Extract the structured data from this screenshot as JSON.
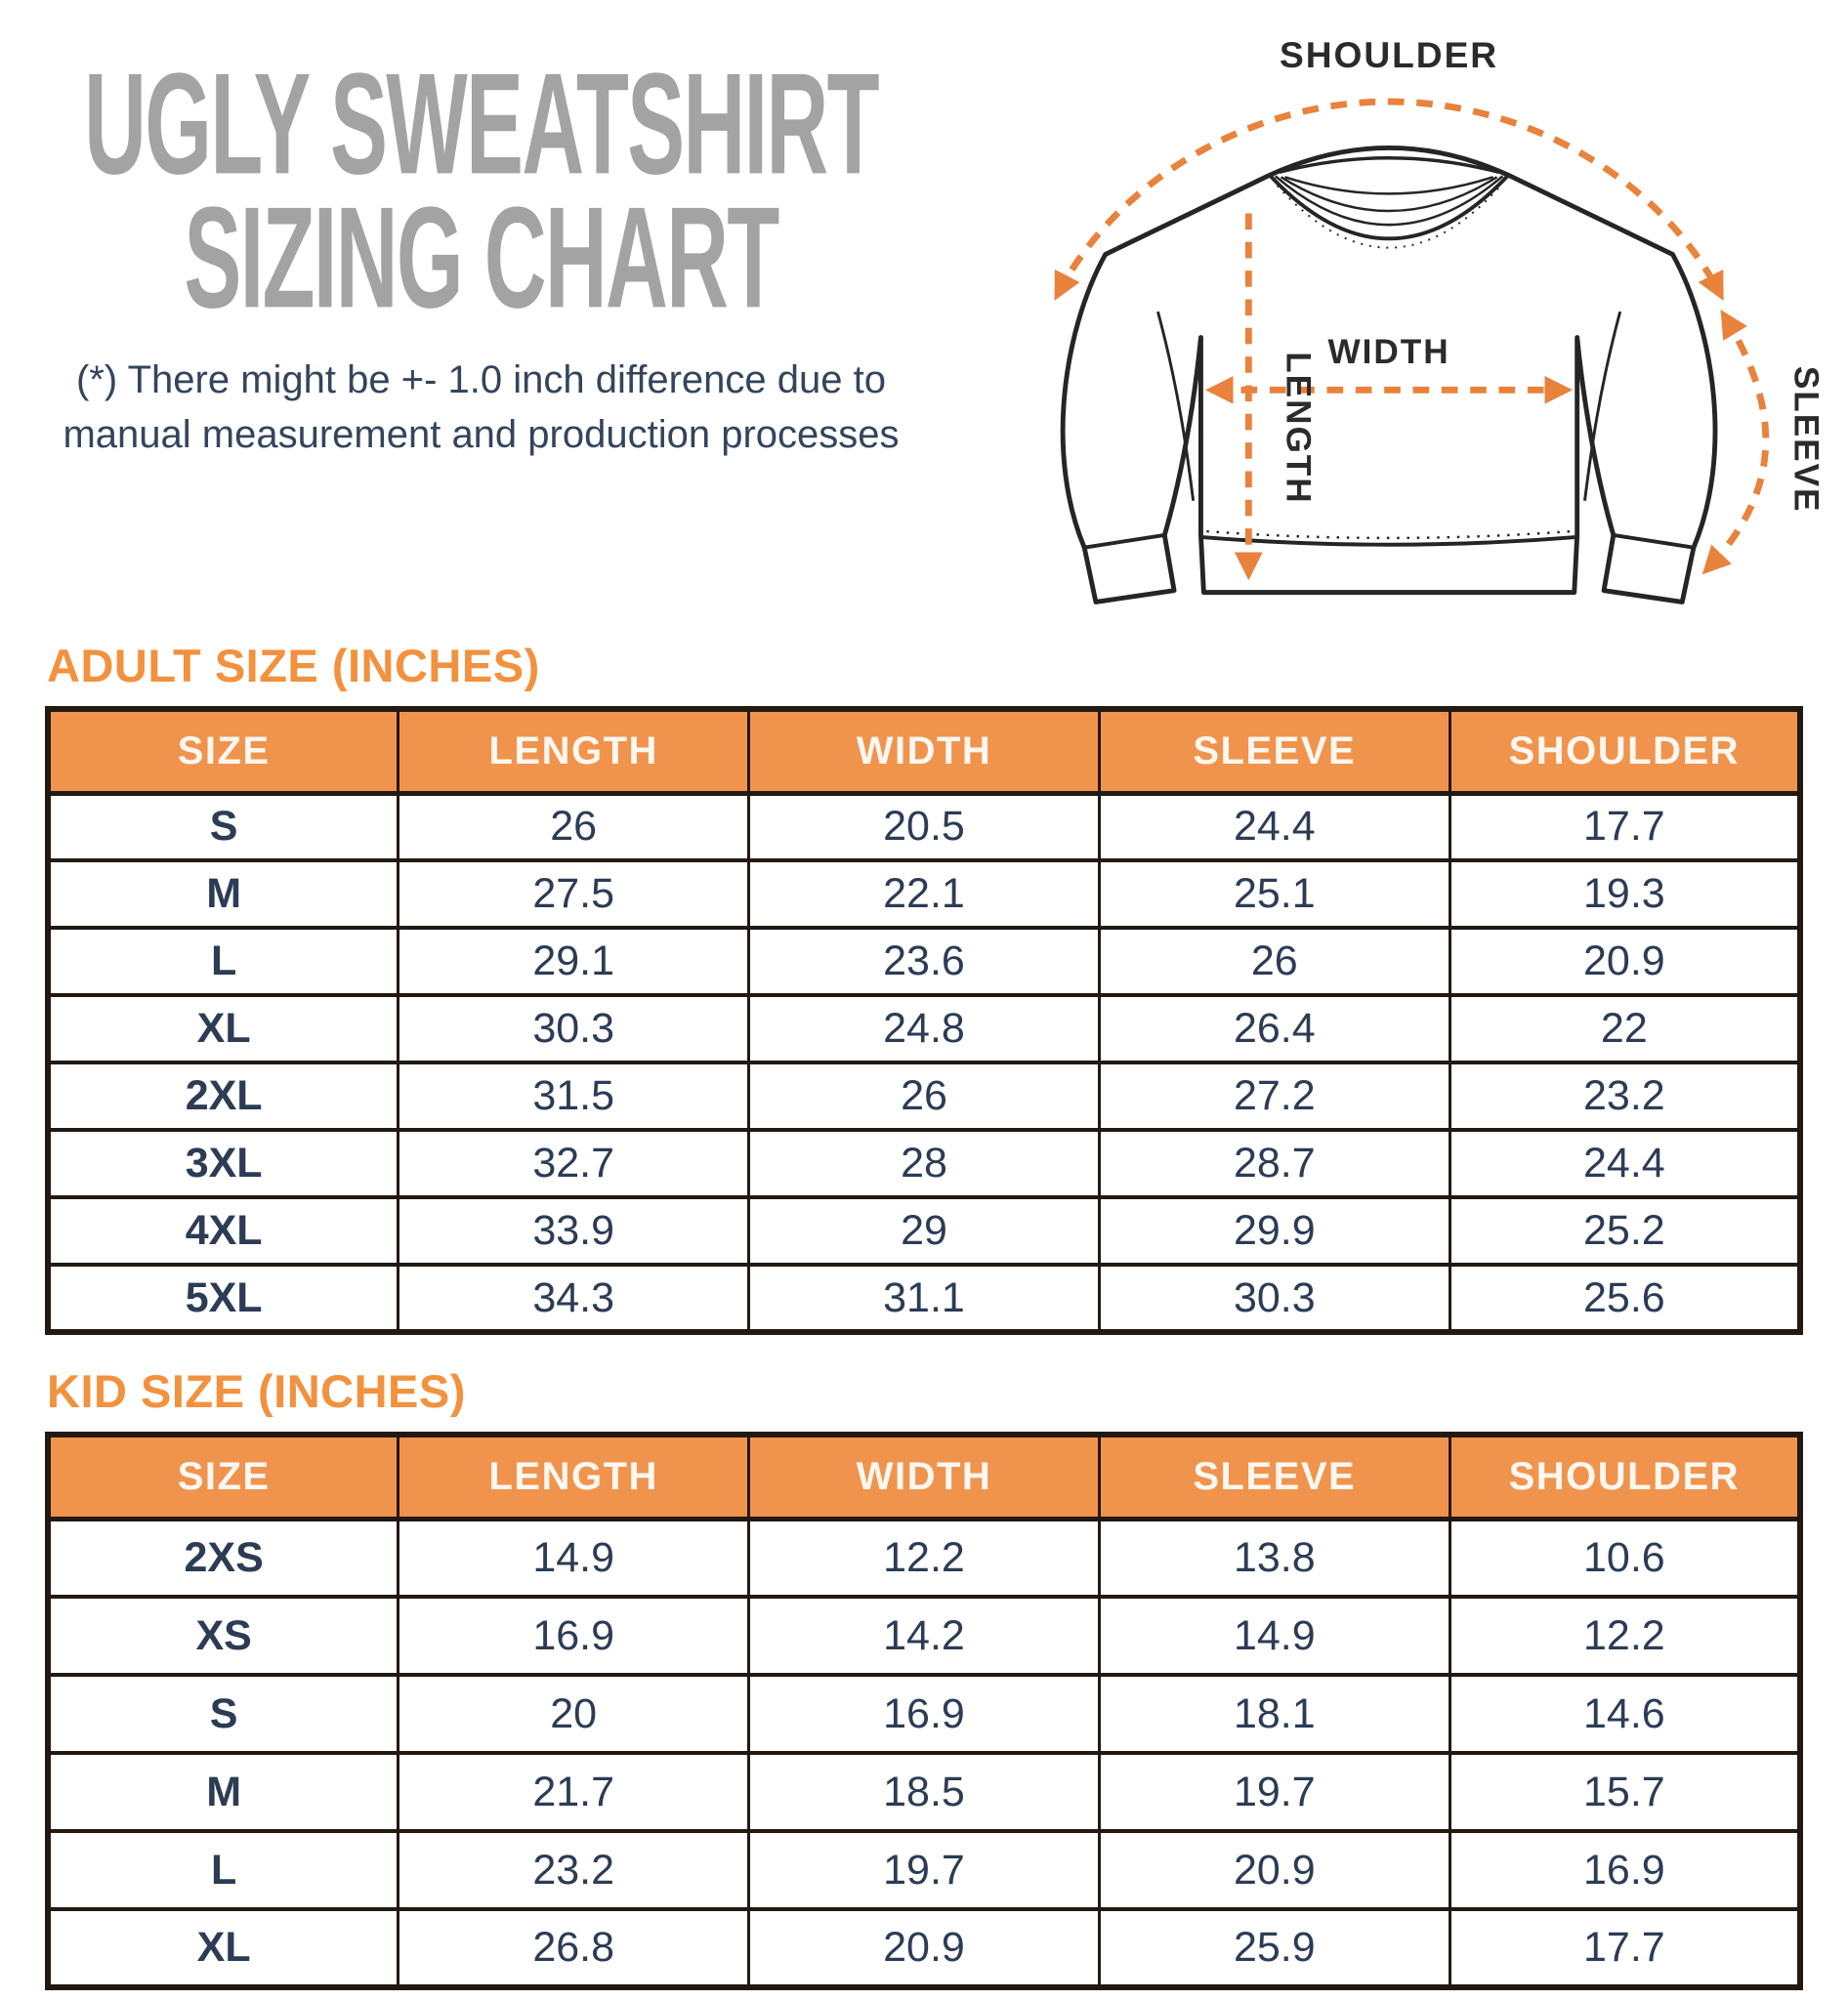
{
  "title": {
    "line1": "UGLY SWEATSHIRT",
    "line2": "SIZING CHART"
  },
  "disclaimer": {
    "line1": "(*) There might be +- 1.0 inch difference due to",
    "line2": "manual measurement and production processes"
  },
  "diagram": {
    "labels": {
      "shoulder": "SHOULDER",
      "width": "WIDTH",
      "length": "LENGTH",
      "sleeve": "SLEEVE"
    }
  },
  "adult_table": {
    "heading": "ADULT SIZE (INCHES)",
    "columns": [
      "SIZE",
      "LENGTH",
      "WIDTH",
      "SLEEVE",
      "SHOULDER"
    ],
    "rows": [
      [
        "S",
        "26",
        "20.5",
        "24.4",
        "17.7"
      ],
      [
        "M",
        "27.5",
        "22.1",
        "25.1",
        "19.3"
      ],
      [
        "L",
        "29.1",
        "23.6",
        "26",
        "20.9"
      ],
      [
        "XL",
        "30.3",
        "24.8",
        "26.4",
        "22"
      ],
      [
        "2XL",
        "31.5",
        "26",
        "27.2",
        "23.2"
      ],
      [
        "3XL",
        "32.7",
        "28",
        "28.7",
        "24.4"
      ],
      [
        "4XL",
        "33.9",
        "29",
        "29.9",
        "25.2"
      ],
      [
        "5XL",
        "34.3",
        "31.1",
        "30.3",
        "25.6"
      ]
    ]
  },
  "kid_table": {
    "heading": "KID SIZE (INCHES)",
    "columns": [
      "SIZE",
      "LENGTH",
      "WIDTH",
      "SLEEVE",
      "SHOULDER"
    ],
    "rows": [
      [
        "2XS",
        "14.9",
        "12.2",
        "13.8",
        "10.6"
      ],
      [
        "XS",
        "16.9",
        "14.2",
        "14.9",
        "12.2"
      ],
      [
        "S",
        "20",
        "16.9",
        "18.1",
        "14.6"
      ],
      [
        "M",
        "21.7",
        "18.5",
        "19.7",
        "15.7"
      ],
      [
        "L",
        "23.2",
        "19.7",
        "20.9",
        "16.9"
      ],
      [
        "XL",
        "26.8",
        "20.9",
        "25.9",
        "17.7"
      ]
    ]
  },
  "chart_data": [
    {
      "type": "table",
      "title": "ADULT SIZE (INCHES)",
      "columns": [
        "SIZE",
        "LENGTH",
        "WIDTH",
        "SLEEVE",
        "SHOULDER"
      ],
      "rows": [
        [
          "S",
          26,
          20.5,
          24.4,
          17.7
        ],
        [
          "M",
          27.5,
          22.1,
          25.1,
          19.3
        ],
        [
          "L",
          29.1,
          23.6,
          26,
          20.9
        ],
        [
          "XL",
          30.3,
          24.8,
          26.4,
          22
        ],
        [
          "2XL",
          31.5,
          26,
          27.2,
          23.2
        ],
        [
          "3XL",
          32.7,
          28,
          28.7,
          24.4
        ],
        [
          "4XL",
          33.9,
          29,
          29.9,
          25.2
        ],
        [
          "5XL",
          34.3,
          31.1,
          30.3,
          25.6
        ]
      ]
    },
    {
      "type": "table",
      "title": "KID SIZE (INCHES)",
      "columns": [
        "SIZE",
        "LENGTH",
        "WIDTH",
        "SLEEVE",
        "SHOULDER"
      ],
      "rows": [
        [
          "2XS",
          14.9,
          12.2,
          13.8,
          10.6
        ],
        [
          "XS",
          16.9,
          14.2,
          14.9,
          12.2
        ],
        [
          "S",
          20,
          16.9,
          18.1,
          14.6
        ],
        [
          "M",
          21.7,
          18.5,
          19.7,
          15.7
        ],
        [
          "L",
          23.2,
          19.7,
          20.9,
          16.9
        ],
        [
          "XL",
          26.8,
          20.9,
          25.9,
          17.7
        ]
      ]
    }
  ],
  "colors": {
    "title_gray": "#a3a3a3",
    "heading_orange": "#f2913e",
    "header_bg_orange": "#f0944d",
    "peach_column": "#fbeee3",
    "table_text_navy": "#2c3c55",
    "border_dark": "#221912",
    "arrow_orange": "#e8823c"
  }
}
